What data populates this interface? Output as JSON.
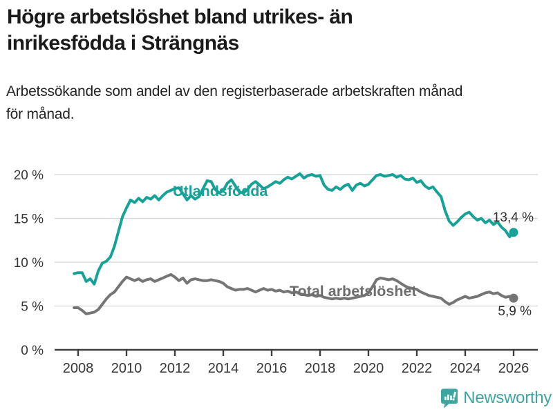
{
  "header": {
    "title_line1": "Högre arbetslöshet bland utrikes- än",
    "title_line2": "inrikesfödda i Strängnäs",
    "subtitle_line1": "Arbetssökande som andel av den registerbaserade arbetskraften månad",
    "subtitle_line2": "för månad."
  },
  "chart_data": {
    "type": "line",
    "title": "Högre arbetslöshet bland utrikes- än inrikesfödda i Strängnäs",
    "subtitle": "Arbetssökande som andel av den registerbaserade arbetskraften månad för månad.",
    "grid": true,
    "legend_position": "inline-labels",
    "x_axis": {
      "unit": "year",
      "range": [
        2007.8,
        2026.2
      ],
      "tick_years": [
        2008,
        2010,
        2012,
        2014,
        2016,
        2018,
        2020,
        2022,
        2024,
        2026
      ],
      "tick_labels": [
        "2008",
        "2010",
        "2012",
        "2014",
        "2016",
        "2018",
        "2020",
        "2022",
        "2024",
        "2026"
      ]
    },
    "y_axis": {
      "unit": "percent",
      "range": [
        0,
        20
      ],
      "tick_values": [
        0,
        5,
        10,
        15,
        20
      ],
      "tick_labels": [
        "0 %",
        "5 %",
        "10 %",
        "15 %",
        "20 %"
      ]
    },
    "colors": {
      "series_foreign": "#16A296",
      "series_total": "#757575",
      "series_total_label": "#6d6d6d",
      "gridline": "#dadada",
      "axis": "#3f3f3f",
      "annotation": "#2e2e2e"
    },
    "series": [
      {
        "name": "Utlandsfödda",
        "color": "#16A296",
        "start_year": 2007.8333,
        "step_years": 0.166667,
        "end_label": "13,4 %",
        "end_value": 13.4,
        "values": [
          8.7,
          8.8,
          8.8,
          7.8,
          8.1,
          7.5,
          9.0,
          9.9,
          10.1,
          10.6,
          11.8,
          13.5,
          15.2,
          16.2,
          17.1,
          16.8,
          17.3,
          16.9,
          17.4,
          17.2,
          17.6,
          17.1,
          17.6,
          18.0,
          18.2,
          18.4,
          18.5,
          17.8,
          17.1,
          17.6,
          17.2,
          17.5,
          18.4,
          19.3,
          19.2,
          18.3,
          17.9,
          18.2,
          19.0,
          19.4,
          18.7,
          18.0,
          17.9,
          18.3,
          18.9,
          19.2,
          18.8,
          18.4,
          18.6,
          18.9,
          19.2,
          19.0,
          19.4,
          19.7,
          19.5,
          19.8,
          20.1,
          19.6,
          19.9,
          20.0,
          19.8,
          19.9,
          18.8,
          18.3,
          18.2,
          18.6,
          18.3,
          18.7,
          18.9,
          18.2,
          18.8,
          19.0,
          18.7,
          18.9,
          19.4,
          19.9,
          20.0,
          19.8,
          19.9,
          20.0,
          19.7,
          19.9,
          19.5,
          19.4,
          19.6,
          19.1,
          19.3,
          18.7,
          18.4,
          18.6,
          18.0,
          17.5,
          15.9,
          14.7,
          14.2,
          14.6,
          15.1,
          15.5,
          15.7,
          15.2,
          14.8,
          15.0,
          14.5,
          14.8,
          14.3,
          14.6,
          14.0,
          13.6,
          12.9,
          13.4
        ]
      },
      {
        "name": "Total arbetslöshet",
        "color": "#757575",
        "start_year": 2007.8333,
        "step_years": 0.166667,
        "end_label": "5,9 %",
        "end_value": 5.9,
        "values": [
          4.8,
          4.8,
          4.5,
          4.1,
          4.2,
          4.3,
          4.6,
          5.2,
          5.8,
          6.3,
          6.6,
          7.2,
          7.8,
          8.3,
          8.1,
          7.9,
          8.1,
          7.8,
          8.0,
          8.1,
          7.8,
          8.0,
          8.2,
          8.4,
          8.6,
          8.3,
          7.9,
          8.2,
          7.6,
          8.0,
          8.1,
          8.0,
          7.9,
          7.9,
          8.0,
          7.9,
          7.8,
          7.6,
          7.2,
          7.0,
          6.8,
          6.9,
          6.9,
          7.0,
          6.8,
          6.6,
          6.8,
          7.0,
          6.8,
          6.9,
          6.7,
          6.8,
          6.6,
          6.7,
          6.5,
          6.6,
          6.4,
          6.3,
          6.2,
          6.3,
          6.1,
          6.2,
          6.0,
          5.9,
          5.8,
          5.9,
          5.8,
          5.9,
          5.8,
          5.9,
          6.0,
          6.1,
          6.2,
          6.5,
          7.2,
          8.0,
          8.2,
          8.1,
          8.0,
          8.1,
          7.9,
          7.6,
          7.3,
          7.1,
          7.0,
          6.9,
          6.6,
          6.4,
          6.2,
          6.1,
          6.0,
          5.9,
          5.5,
          5.2,
          5.4,
          5.7,
          5.9,
          6.1,
          5.9,
          6.0,
          6.1,
          6.3,
          6.5,
          6.6,
          6.4,
          6.5,
          6.2,
          6.0,
          6.1,
          5.9
        ]
      }
    ]
  },
  "footer": {
    "brand": "Newsworthy",
    "brand_color": "#3FA5A0",
    "logo_icon": "speech-bubble-bar-chart-icon"
  }
}
